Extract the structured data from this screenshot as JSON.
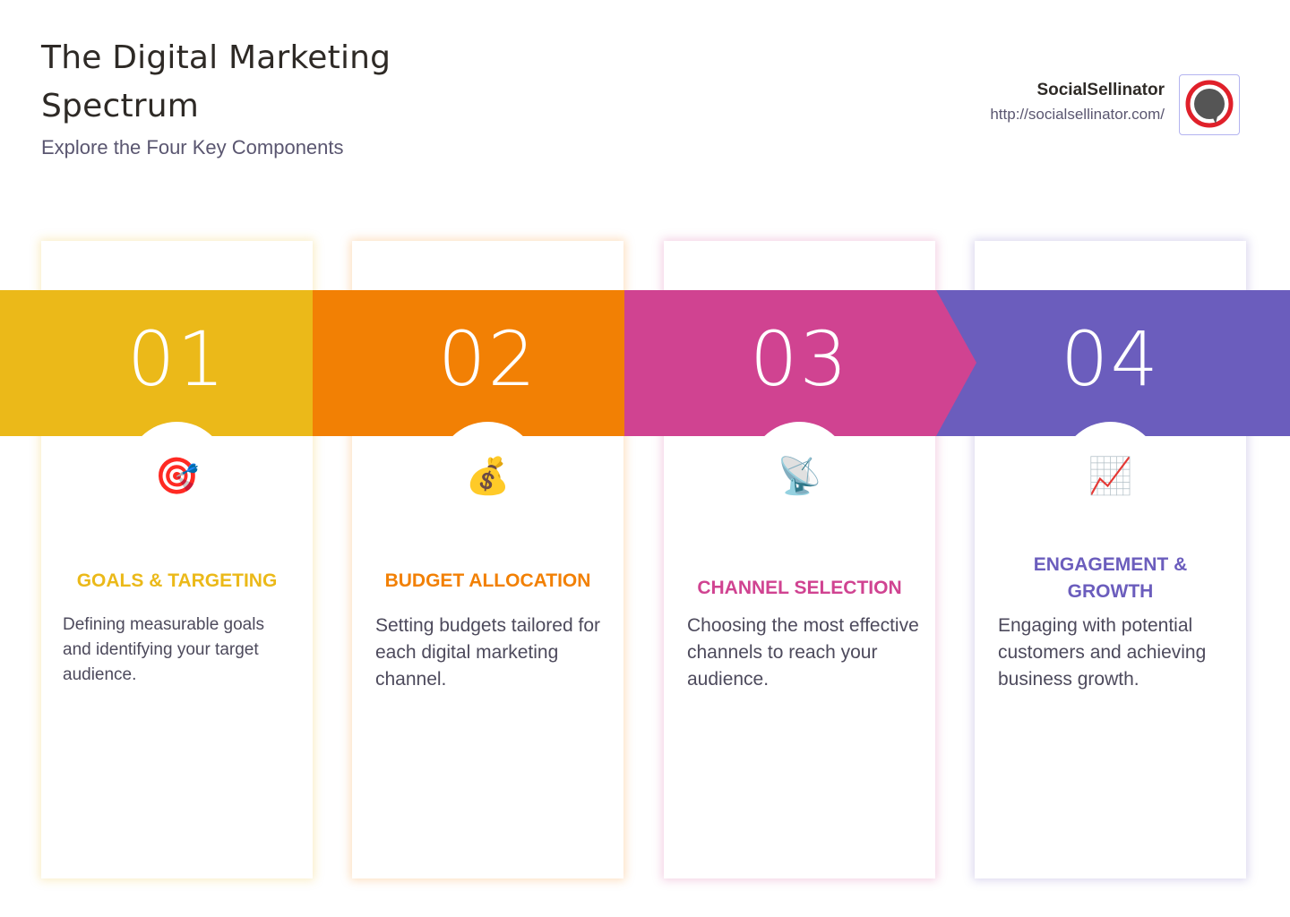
{
  "header": {
    "title": "The Digital Marketing Spectrum",
    "subtitle": "Explore the Four Key Components"
  },
  "brand": {
    "name": "SocialSellinator",
    "url": "http://socialsellinator.com/",
    "logo_colors": {
      "ring": "#e0202a",
      "bubble": "#555555"
    }
  },
  "steps": [
    {
      "number": "01",
      "icon": "target-icon",
      "emoji": "🎯",
      "title": "GOALS & TARGETING",
      "description": "Defining measurable goals and identifying your target audience.",
      "color": "#ebb919"
    },
    {
      "number": "02",
      "icon": "money-bag-icon",
      "emoji": "💰",
      "title": "BUDGET ALLOCATION",
      "description": "Setting budgets tailored for each digital marketing channel.",
      "color": "#f28004"
    },
    {
      "number": "03",
      "icon": "satellite-dish-icon",
      "emoji": "📡",
      "title": "CHANNEL SELECTION",
      "description": "Choosing the most effective channels to reach your audience.",
      "color": "#d04391"
    },
    {
      "number": "04",
      "icon": "chart-increasing-icon",
      "emoji": "📈",
      "title": "ENGAGEMENT & GROWTH",
      "description": "Engaging with potential customers and achieving business growth.",
      "color": "#6b5dbd"
    }
  ]
}
